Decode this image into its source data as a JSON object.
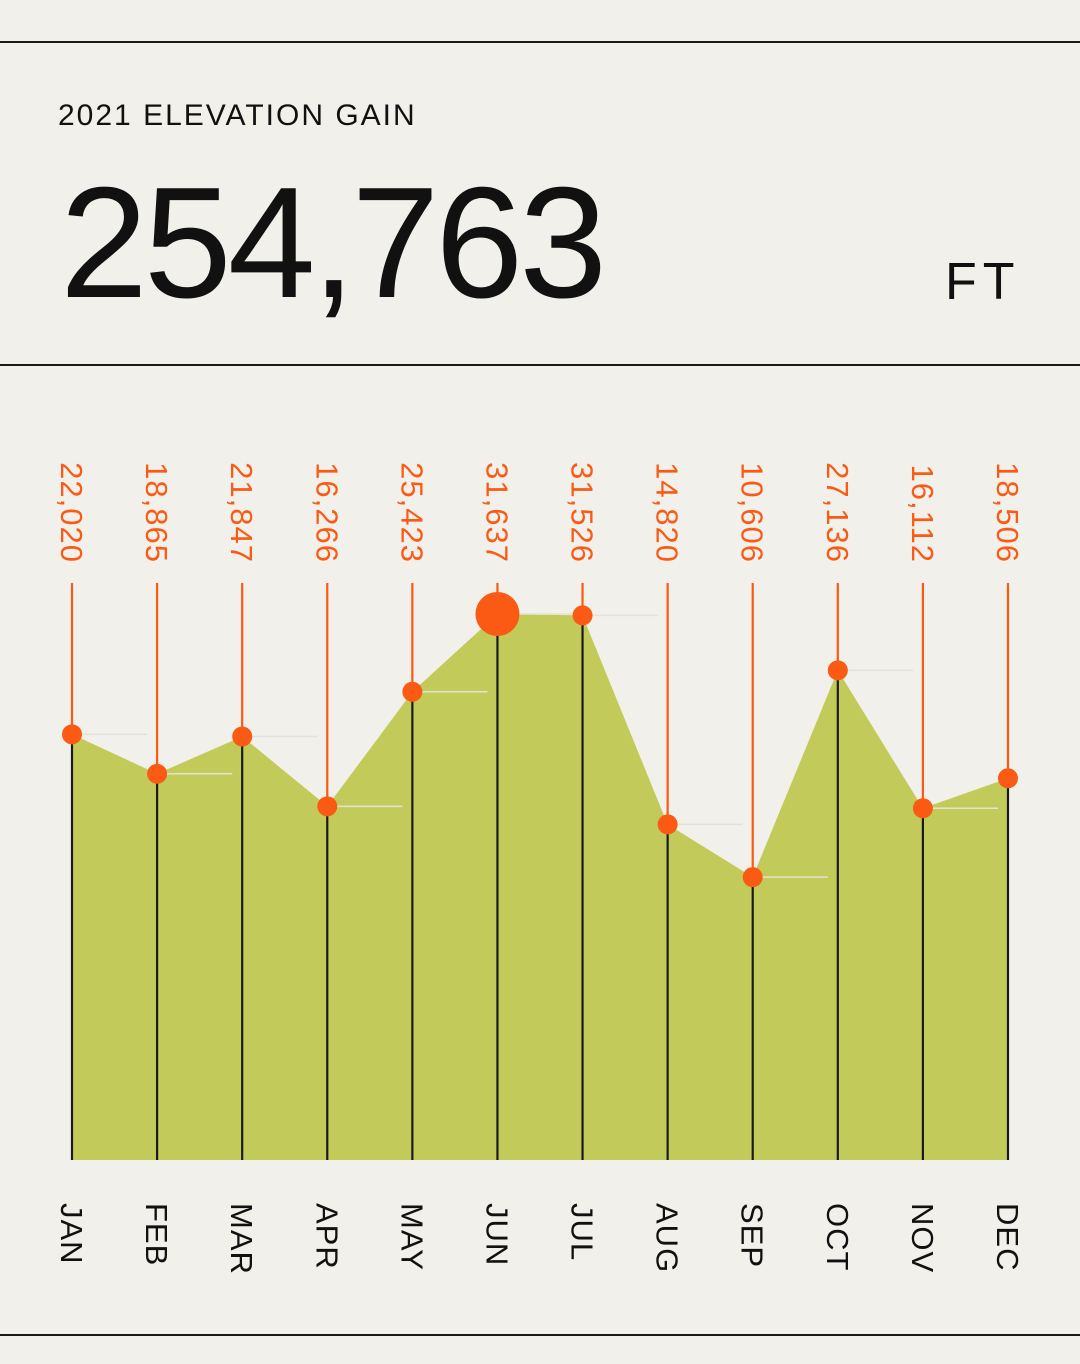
{
  "header": {
    "label": "2021 ELEVATION GAIN",
    "total": "254,763",
    "unit": "FT"
  },
  "colors": {
    "background": "#f2f0eb",
    "area_fill": "#c2cb5a",
    "accent": "#fa5a14",
    "line": "#1a1a1a"
  },
  "chart_data": {
    "type": "area",
    "title": "2021 ELEVATION GAIN",
    "categories": [
      "JAN",
      "FEB",
      "MAR",
      "APR",
      "MAY",
      "JUN",
      "JUL",
      "AUG",
      "SEP",
      "OCT",
      "NOV",
      "DEC"
    ],
    "series": [
      {
        "values": [
          22020,
          18865,
          21847,
          16266,
          25423,
          31637,
          31526,
          14820,
          10606,
          27136,
          16112,
          18506
        ]
      }
    ],
    "value_labels": [
      "22,020",
      "18,865",
      "21,847",
      "16,266",
      "25,423",
      "31,637",
      "31,526",
      "14,820",
      "10,606",
      "27,136",
      "16,112",
      "18,506"
    ],
    "ylim": [
      -12000,
      31637
    ],
    "highlight": "JUN",
    "grid": false,
    "legend": "none"
  }
}
